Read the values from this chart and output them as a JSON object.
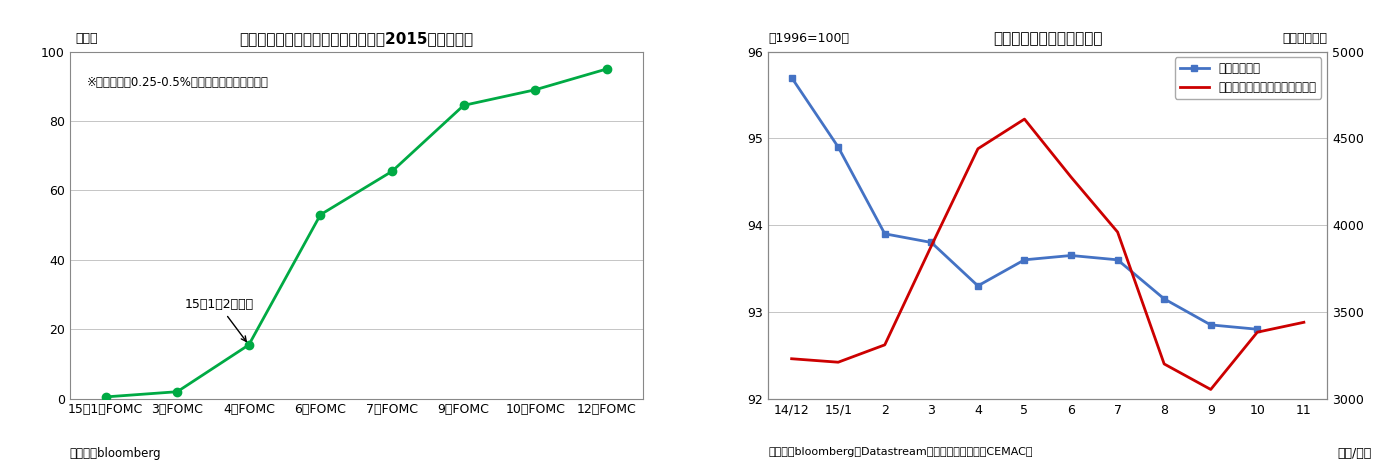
{
  "chart1": {
    "title": "先物が織り込む米利上げ予想確率（2015年初時点）",
    "ylabel": "（％）",
    "source": "（資料）bloomberg",
    "annotation": "15年1月2日時点",
    "note": "※政策金利が0.25-0.5%以上に上がっている確率",
    "x_labels": [
      "15年1月FOMC",
      "3月FOMC",
      "4月FOMC",
      "6月FOMC",
      "7月FOMC",
      "9月FOMC",
      "10月FOMC",
      "12月FOMC"
    ],
    "y_values": [
      0.5,
      2.0,
      15.5,
      53.0,
      65.5,
      84.5,
      89.0,
      95.0
    ],
    "ylim": [
      0,
      100
    ],
    "yticks": [
      0,
      20,
      40,
      60,
      80,
      100
    ],
    "line_color": "#00aa44",
    "marker_size": 6
  },
  "chart2": {
    "title": "中国の景気一致指数と株価",
    "ylabel_left": "（1996=100）",
    "ylabel_right": "（ポイント）",
    "source": "（資料）bloomberg、Datastream、中国国家統計局（CEMAC）",
    "xlabel": "（年/月）",
    "x_labels": [
      "14/12",
      "15/1",
      "2",
      "3",
      "4",
      "5",
      "6",
      "7",
      "8",
      "9",
      "10",
      "11"
    ],
    "coincident_values": [
      95.7,
      94.9,
      93.9,
      93.8,
      93.3,
      93.6,
      93.65,
      93.6,
      93.15,
      92.85,
      92.8,
      null
    ],
    "shanghai_values": [
      3230,
      3210,
      3310,
      3880,
      4440,
      4611,
      4277,
      3960,
      3200,
      3053,
      3383,
      3440
    ],
    "ylim_left": [
      92,
      96
    ],
    "ylim_right": [
      3000,
      5000
    ],
    "yticks_left": [
      92,
      93,
      94,
      95,
      96
    ],
    "yticks_right": [
      3000,
      3500,
      4000,
      4500,
      5000
    ],
    "coincident_color": "#4472c4",
    "shanghai_color": "#cc0000",
    "legend_coincident": "景気一致指数",
    "legend_shanghai": "上海総合指数（月末値・右軸）"
  },
  "background_color": "#ffffff"
}
